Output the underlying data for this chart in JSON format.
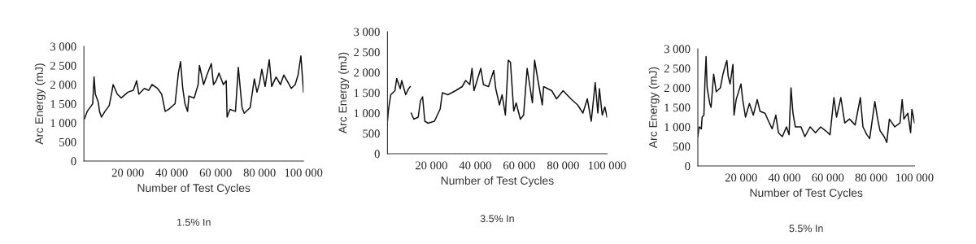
{
  "chart_data": [
    {
      "type": "line",
      "xlabel": "Number of Test Cycles",
      "ylabel": "Arc Energy (mJ)",
      "annotations": [
        "1.5% In"
      ],
      "xlim": [
        0,
        100000
      ],
      "ylim": [
        0,
        3000
      ],
      "xticks": [
        {
          "value": 20000,
          "label": "20 000"
        },
        {
          "value": 40000,
          "label": "40 000"
        },
        {
          "value": 60000,
          "label": "60 000"
        },
        {
          "value": 80000,
          "label": "80 000"
        },
        {
          "value": 100000,
          "label": "100 000"
        }
      ],
      "yticks": [
        0,
        500,
        {
          "value": 1000,
          "label": "1 000"
        },
        {
          "value": 1500,
          "label": "1 500"
        },
        {
          "value": 2000,
          "label": "2 000"
        },
        {
          "value": 2500,
          "label": "2 500"
        },
        {
          "value": 3000,
          "label": "3 000"
        }
      ],
      "series": [
        {
          "color": "#111111",
          "x": [
            200,
            1500,
            3400,
            4000,
            4600,
            5200,
            6500,
            7100,
            8000,
            9600,
            11500,
            12700,
            13300,
            15200,
            17000,
            20000,
            22500,
            24000,
            25000,
            27500,
            29500,
            31000,
            33500,
            35400,
            37000,
            38500,
            41500,
            43000,
            44000,
            45000,
            46000,
            47200,
            47800,
            50200,
            52000,
            52600,
            54500,
            56000,
            58000,
            59000,
            60200,
            61500,
            63500,
            64800,
            65200,
            66500,
            69000,
            70300,
            72000,
            73000,
            75700,
            77600,
            78800,
            80000,
            81000,
            82500,
            84400,
            85500,
            87500,
            89500,
            91000,
            93000,
            94400,
            96200,
            97500,
            98800,
            100000
          ],
          "values": [
            1100,
            1300,
            1450,
            1500,
            2200,
            1750,
            1550,
            1300,
            1150,
            1300,
            1450,
            1800,
            2000,
            1750,
            1650,
            1800,
            1850,
            2100,
            1750,
            1900,
            1850,
            2000,
            1900,
            1750,
            1300,
            1350,
            1500,
            2300,
            2600,
            1900,
            1500,
            1300,
            1700,
            1650,
            2000,
            2500,
            2000,
            2250,
            2550,
            2000,
            2100,
            2300,
            2000,
            2100,
            1150,
            1350,
            1300,
            2450,
            1400,
            1250,
            1400,
            2150,
            1800,
            2050,
            2400,
            1950,
            2650,
            1950,
            2200,
            2000,
            2250,
            2050,
            1900,
            2000,
            2250,
            2750,
            1800
          ]
        }
      ]
    },
    {
      "type": "line",
      "xlabel": "Number of Test Cycles",
      "ylabel": "Arc Energy (mJ)",
      "annotations": [
        "3.5% In"
      ],
      "xlim": [
        0,
        100000
      ],
      "ylim": [
        0,
        3000
      ],
      "xticks": [
        {
          "value": 20000,
          "label": "20 000"
        },
        {
          "value": 40000,
          "label": "40 000"
        },
        {
          "value": 60000,
          "label": "60 000"
        },
        {
          "value": 80000,
          "label": "80 000"
        },
        {
          "value": 100000,
          "label": "100 000"
        }
      ],
      "yticks": [
        0,
        500,
        {
          "value": 1000,
          "label": "1 000"
        },
        {
          "value": 1500,
          "label": "1 500"
        },
        {
          "value": 2000,
          "label": "2 000"
        },
        {
          "value": 2500,
          "label": "2 500"
        },
        {
          "value": 3000,
          "label": "3 000"
        }
      ],
      "series": [
        {
          "color": "#111111",
          "x": [
            0,
            500,
            1500,
            3400,
            4200,
            5800,
            6500,
            8300,
            9600,
            10400,
            10600,
            10800,
            12000,
            14000,
            15000,
            16000,
            17000,
            18500,
            21400,
            24000,
            25000,
            27500,
            31000,
            34000,
            35600,
            37500,
            38500,
            39400,
            42500,
            43700,
            46000,
            48400,
            49300,
            51000,
            52200,
            53700,
            55000,
            56000,
            57500,
            58600,
            60500,
            62000,
            63600,
            66000,
            67000,
            68700,
            70500,
            71100,
            74800,
            77000,
            80000,
            83500,
            86600,
            89000,
            91000,
            92800,
            94600,
            95800,
            96500,
            97800,
            99000,
            100000
          ],
          "values": [
            800,
            1100,
            1450,
            1550,
            1850,
            1600,
            1800,
            1450,
            1600,
            1650,
            null,
            1000,
            850,
            900,
            1300,
            1400,
            800,
            750,
            800,
            1100,
            1500,
            1450,
            1550,
            1650,
            1800,
            1700,
            2100,
            1550,
            2100,
            1700,
            1650,
            2050,
            1600,
            1200,
            1450,
            950,
            2300,
            2250,
            1050,
            1250,
            850,
            950,
            2100,
            1250,
            2300,
            1750,
            1200,
            1650,
            1550,
            1350,
            1550,
            1350,
            1200,
            1000,
            1350,
            800,
            1750,
            1000,
            1600,
            950,
            1150,
            900
          ]
        }
      ]
    },
    {
      "type": "line",
      "xlabel": "Number of Test Cycles",
      "ylabel": "Arc Energy (mJ)",
      "annotations": [
        "5.5% In"
      ],
      "xlim": [
        0,
        100000
      ],
      "ylim": [
        0,
        3000
      ],
      "xticks": [
        {
          "value": 20000,
          "label": "20 000"
        },
        {
          "value": 40000,
          "label": "40 000"
        },
        {
          "value": 60000,
          "label": "60 000"
        },
        {
          "value": 80000,
          "label": "80 000"
        },
        {
          "value": 100000,
          "label": "100 000"
        }
      ],
      "yticks": [
        0,
        500,
        {
          "value": 1000,
          "label": "1 000"
        },
        {
          "value": 1500,
          "label": "1 500"
        },
        {
          "value": 2000,
          "label": "2 000"
        },
        {
          "value": 2500,
          "label": "2 500"
        },
        {
          "value": 3000,
          "label": "3 000"
        }
      ],
      "series": [
        {
          "color": "#111111",
          "x": [
            0,
            600,
            1600,
            2000,
            2800,
            3300,
            3800,
            4300,
            5500,
            6100,
            7300,
            8500,
            10400,
            11600,
            12800,
            13400,
            14000,
            14900,
            16200,
            16700,
            17700,
            19900,
            20700,
            22000,
            23800,
            25600,
            27400,
            28700,
            31000,
            33000,
            34300,
            36000,
            37200,
            39000,
            40900,
            42100,
            43000,
            43900,
            45000,
            47600,
            49400,
            51800,
            54300,
            56700,
            59000,
            61000,
            62800,
            64000,
            66000,
            67800,
            70000,
            72600,
            75000,
            76200,
            78000,
            79300,
            81700,
            83000,
            84100,
            86000,
            87200,
            88400,
            90900,
            93300,
            94300,
            95100,
            96900,
            98200,
            98800,
            100000
          ],
          "values": [
            750,
            1000,
            950,
            1250,
            1300,
            2200,
            2800,
            2000,
            1600,
            1500,
            2350,
            1900,
            2000,
            2350,
            2600,
            2700,
            2300,
            2100,
            2600,
            1300,
            1700,
            2100,
            1700,
            1250,
            1600,
            1300,
            1700,
            1400,
            1350,
            1100,
            950,
            1300,
            850,
            750,
            1000,
            800,
            2000,
            1350,
            1000,
            1000,
            750,
            1000,
            850,
            1000,
            900,
            800,
            1750,
            1250,
            1750,
            1100,
            1200,
            1050,
            1750,
            1000,
            800,
            700,
            1650,
            1200,
            900,
            750,
            600,
            1200,
            1000,
            1100,
            1700,
            1200,
            1350,
            850,
            1450,
            1100
          ]
        }
      ]
    }
  ]
}
